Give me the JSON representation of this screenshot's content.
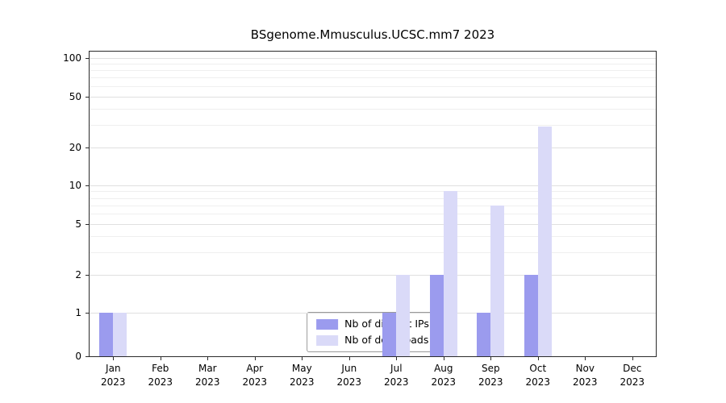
{
  "title": "BSgenome.Mmusculus.UCSC.mm7 2023",
  "chart_data": {
    "type": "bar",
    "title": "BSgenome.Mmusculus.UCSC.mm7 2023",
    "categories": [
      "Jan",
      "Feb",
      "Mar",
      "Apr",
      "May",
      "Jun",
      "Jul",
      "Aug",
      "Sep",
      "Oct",
      "Nov",
      "Dec"
    ],
    "year_label": "2023",
    "series": [
      {
        "name": "Nb of distinct IPs",
        "color": "#9b9bee",
        "values": [
          1,
          0,
          0,
          0,
          0,
          0,
          1,
          2,
          1,
          2,
          0,
          0
        ]
      },
      {
        "name": "Nb of downloads",
        "color": "#dadaf8",
        "values": [
          1,
          0,
          0,
          0,
          0,
          0,
          2,
          9,
          7,
          29,
          0,
          0
        ]
      }
    ],
    "y_ticks": [
      0,
      1,
      2,
      5,
      10,
      20,
      50,
      100
    ],
    "ylim": [
      0,
      100
    ],
    "scale": "log",
    "grid": "horizontal",
    "legend_position": "bottom-center"
  },
  "colors": {
    "grid_major": "#e0e0e0",
    "grid_minor": "#efefef",
    "axis": "#2b2b2b",
    "background": "#ffffff"
  }
}
